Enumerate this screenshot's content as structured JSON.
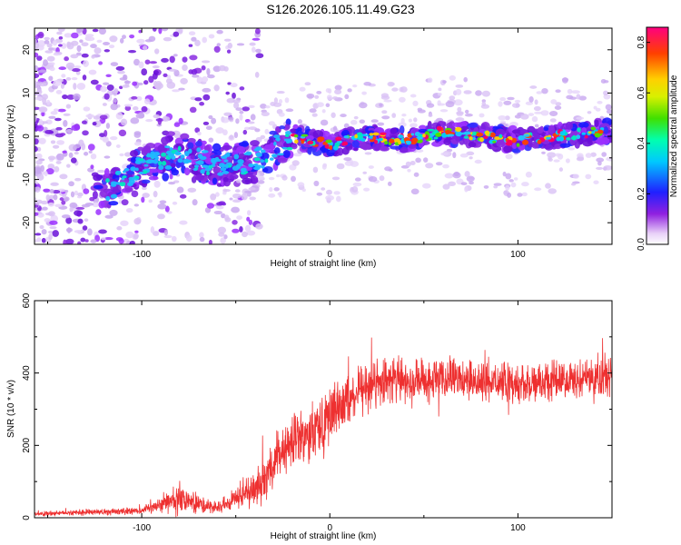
{
  "title": "S126.2026.105.11.49.G23",
  "chart_data": [
    {
      "type": "heatmap",
      "xlabel": "Height of straight line (km)",
      "ylabel": "Frequency (Hz)",
      "xlim": [
        -157,
        150
      ],
      "ylim": [
        -25,
        25
      ],
      "xticks": [
        -100,
        0,
        100
      ],
      "yticks": [
        -20,
        -10,
        0,
        10,
        20
      ],
      "trend": {
        "x": [
          -120,
          -100,
          -80,
          -60,
          -40,
          -20,
          0,
          20,
          40,
          60,
          80,
          100,
          120,
          145
        ],
        "y": [
          -13,
          -7,
          -4,
          -7,
          -6,
          0,
          -2,
          0,
          -1,
          1,
          0,
          -1,
          0,
          1
        ]
      },
      "colorbar": {
        "label": "Normalized spectral amplitude",
        "range": [
          0,
          0.86
        ],
        "ticks": [
          "0.0",
          "0.2",
          "0.4",
          "0.6",
          "0.8"
        ],
        "tick_values": [
          0,
          0.2,
          0.4,
          0.6,
          0.8
        ]
      }
    },
    {
      "type": "line",
      "xlabel": "Height of straight line (km)",
      "ylabel": "SNR (10 * v/v)",
      "xlim": [
        -157,
        150
      ],
      "ylim": [
        0,
        600
      ],
      "xticks": [
        -100,
        0,
        100
      ],
      "yticks": [
        0,
        200,
        400,
        600
      ],
      "color": "#ee3030",
      "envelope": {
        "x": [
          -157,
          -100,
          -80,
          -60,
          -40,
          -20,
          0,
          20,
          40,
          60,
          100,
          150
        ],
        "mean": [
          10,
          20,
          55,
          25,
          80,
          210,
          280,
          370,
          380,
          380,
          370,
          390
        ],
        "spread": [
          8,
          15,
          50,
          20,
          70,
          110,
          110,
          90,
          80,
          80,
          70,
          70
        ]
      }
    }
  ]
}
